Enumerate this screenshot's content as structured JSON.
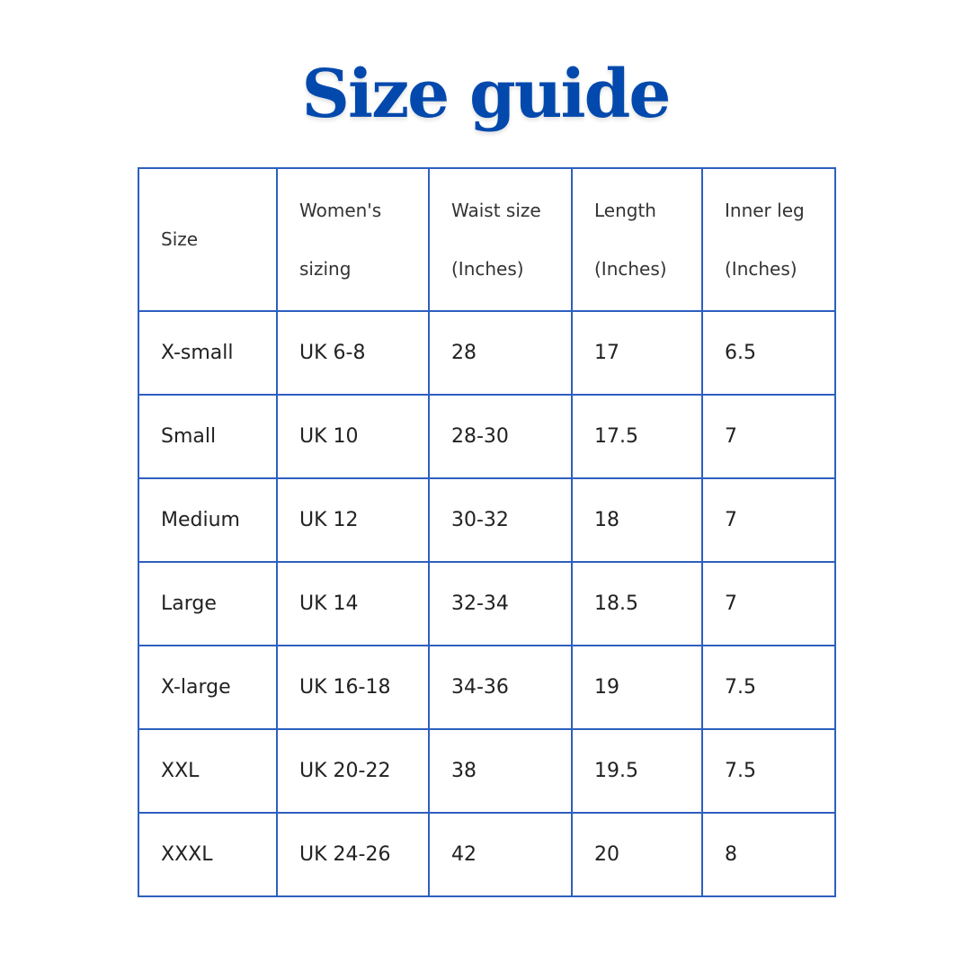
{
  "title": "Size guide",
  "colors": {
    "title": "#0349ad",
    "border": "#2e5fbf"
  },
  "headers": [
    [
      "Size"
    ],
    [
      "Women's",
      "sizing"
    ],
    [
      "Waist size",
      "(Inches)"
    ],
    [
      "Length",
      "(Inches)"
    ],
    [
      "Inner leg",
      "(Inches)"
    ]
  ],
  "rows": [
    [
      "X-small",
      "UK 6-8",
      "28",
      "17",
      "6.5"
    ],
    [
      "Small",
      "UK 10",
      "28-30",
      "17.5",
      "7"
    ],
    [
      "Medium",
      "UK 12",
      "30-32",
      "18",
      "7"
    ],
    [
      "Large",
      "UK 14",
      "32-34",
      "18.5",
      "7"
    ],
    [
      "X-large",
      "UK 16-18",
      "34-36",
      "19",
      "7.5"
    ],
    [
      "XXL",
      "UK 20-22",
      "38",
      "19.5",
      "7.5"
    ],
    [
      "XXXL",
      "UK 24-26",
      "42",
      "20",
      "8"
    ]
  ]
}
